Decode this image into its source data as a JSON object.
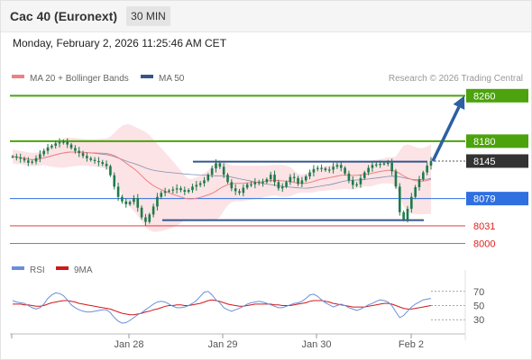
{
  "header": {
    "title": "Cac 40 (Euronext)",
    "timeframe": "30 MIN",
    "datetime": "Monday, February 2, 2026 11:25:46 AM CET"
  },
  "legend": {
    "ma20_label": "MA 20 + Bollinger Bands",
    "ma50_label": "MA 50",
    "copyright": "Research © 2026 Trading Central",
    "rsi_label": "RSI",
    "ma9_label": "9MA"
  },
  "colors": {
    "resistance": "#4ca30d",
    "current": "#333333",
    "pivot": "#2f6fe0",
    "support": "#e02020",
    "arrow": "#2d5fa3",
    "bollinger_fill": "#fbe3e6",
    "ma20": "#f08080",
    "ma50": "#34568b",
    "candle": "#1e7a4a",
    "rsi": "#6a8fd8",
    "rsi_ma": "#d01818"
  },
  "chart_data": [
    {
      "type": "candlestick",
      "instrument": "Cac 40 (Euronext)",
      "interval": "30 MIN",
      "x_tick_labels": [
        "Jan 28",
        "Jan 29",
        "Jan 30",
        "Feb 2"
      ],
      "ylim": [
        7985,
        8270
      ],
      "indicators": [
        "MA 20 + Bollinger Bands",
        "MA 50"
      ],
      "key_levels": [
        {
          "value": 8260,
          "label": "8260",
          "kind": "resistance"
        },
        {
          "value": 8180,
          "label": "8180",
          "kind": "resistance"
        },
        {
          "value": 8145,
          "label": "8145",
          "kind": "current"
        },
        {
          "value": 8079,
          "label": "8079",
          "kind": "pivot"
        },
        {
          "value": 8031,
          "label": "8031",
          "kind": "support"
        },
        {
          "value": 8000,
          "label": "8000",
          "kind": "support"
        }
      ],
      "close_series": [
        8153,
        8151,
        8149,
        8146,
        8142,
        8144,
        8150,
        8157,
        8163,
        8169,
        8172,
        8176,
        8178,
        8179,
        8174,
        8168,
        8163,
        8159,
        8154,
        8150,
        8147,
        8145,
        8143,
        8140,
        8136,
        8120,
        8100,
        8082,
        8074,
        8069,
        8073,
        8080,
        8063,
        8046,
        8038,
        8051,
        8065,
        8082,
        8089,
        8092,
        8093,
        8095,
        8097,
        8094,
        8091,
        8094,
        8100,
        8103,
        8106,
        8111,
        8121,
        8132,
        8141,
        8135,
        8121,
        8108,
        8097,
        8092,
        8089,
        8098,
        8104,
        8104,
        8108,
        8106,
        8108,
        8113,
        8121,
        8108,
        8097,
        8100,
        8108,
        8117,
        8115,
        8105,
        8111,
        8118,
        8125,
        8131,
        8133,
        8132,
        8129,
        8130,
        8135,
        8138,
        8133,
        8123,
        8111,
        8103,
        8104,
        8115,
        8125,
        8133,
        8138,
        8139,
        8140,
        8141,
        8142,
        8127,
        8100,
        8055,
        8042,
        8061,
        8082,
        8099,
        8113,
        8125,
        8137,
        8145
      ],
      "forecast": {
        "from": 8145,
        "to": 8260
      },
      "channel_upper": 8144,
      "channel_lower": 8041
    },
    {
      "type": "line",
      "title": "RSI",
      "series": [
        {
          "name": "RSI",
          "values": [
            57,
            55,
            54,
            53,
            50,
            47,
            45,
            47,
            52,
            60,
            65,
            68,
            67,
            64,
            58,
            51,
            47,
            44,
            42,
            41,
            41,
            42,
            43,
            44,
            44,
            40,
            33,
            28,
            25,
            26,
            29,
            33,
            37,
            40,
            44,
            48,
            52,
            55,
            56,
            55,
            52,
            49,
            47,
            47,
            48,
            50,
            53,
            57,
            63,
            69,
            70,
            65,
            58,
            54,
            47,
            44,
            42,
            44,
            46,
            49,
            52,
            54,
            55,
            56,
            55,
            53,
            51,
            49,
            47,
            47,
            49,
            51,
            53,
            54,
            56,
            60,
            65,
            66,
            63,
            58,
            54,
            51,
            48,
            50,
            52,
            50,
            47,
            45,
            43,
            45,
            48,
            51,
            53,
            56,
            58,
            57,
            55,
            50,
            41,
            33,
            36,
            42,
            48,
            52,
            55,
            58,
            59,
            60
          ]
        },
        {
          "name": "9MA",
          "values": [
            52,
            52,
            52,
            51,
            51,
            50,
            49,
            49,
            50,
            52,
            54,
            55,
            56,
            57,
            57,
            56,
            55,
            53,
            52,
            51,
            50,
            49,
            48,
            47,
            46,
            45,
            43,
            41,
            39,
            38,
            37,
            37,
            38,
            39,
            41,
            42,
            44,
            45,
            47,
            49,
            50,
            50,
            51,
            51,
            50,
            50,
            51,
            52,
            53,
            55,
            57,
            58,
            57,
            56,
            54,
            52,
            51,
            50,
            49,
            49,
            50,
            51,
            52,
            52,
            52,
            52,
            52,
            51,
            51,
            50,
            50,
            50,
            51,
            52,
            53,
            54,
            56,
            57,
            57,
            57,
            56,
            55,
            53,
            52,
            51,
            50,
            49,
            48,
            48,
            48,
            48,
            49,
            50,
            51,
            52,
            53,
            53,
            52,
            50,
            48,
            46,
            45,
            45,
            46,
            47,
            48,
            49,
            50
          ]
        }
      ],
      "y_tick_labels": [
        "70",
        "50",
        "30"
      ],
      "ylim": [
        15,
        85
      ]
    }
  ]
}
